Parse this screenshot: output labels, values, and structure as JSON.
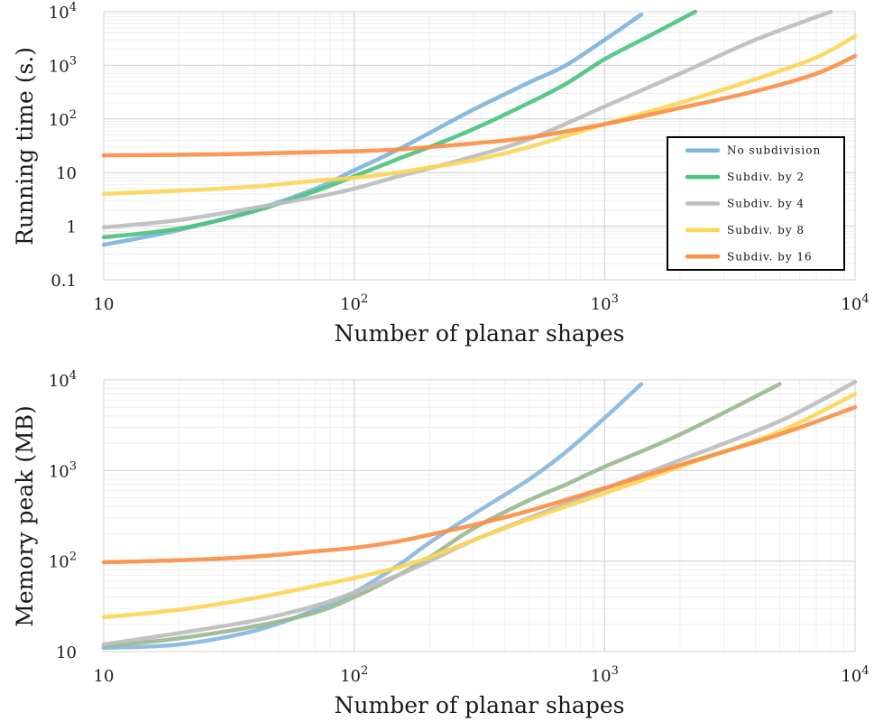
{
  "chart_data": [
    {
      "type": "line",
      "title": "",
      "xlabel": "Number of planar shapes",
      "ylabel": "Running time (s.)",
      "xscale": "log",
      "yscale": "log",
      "xlim": [
        10,
        10000
      ],
      "ylim": [
        0.1,
        10000
      ],
      "xticks": [
        {
          "value": 10,
          "base": "10",
          "exp": ""
        },
        {
          "value": 100,
          "base": "10",
          "exp": "2"
        },
        {
          "value": 1000,
          "base": "10",
          "exp": "3"
        },
        {
          "value": 10000,
          "base": "10",
          "exp": "4"
        }
      ],
      "yticks": [
        {
          "value": 0.1,
          "base": "0.1",
          "exp": ""
        },
        {
          "value": 1,
          "base": "1",
          "exp": ""
        },
        {
          "value": 10,
          "base": "10",
          "exp": ""
        },
        {
          "value": 100,
          "base": "10",
          "exp": "2"
        },
        {
          "value": 1000,
          "base": "10",
          "exp": "3"
        },
        {
          "value": 10000,
          "base": "10",
          "exp": "4"
        }
      ],
      "grid": true,
      "legend": "bottom-right",
      "series": [
        {
          "name": "No subdivision",
          "color": "#7db3de",
          "points": [
            [
              10,
              0.45
            ],
            [
              20,
              0.85
            ],
            [
              40,
              2.0
            ],
            [
              70,
              5.0
            ],
            [
              100,
              11
            ],
            [
              150,
              27
            ],
            [
              200,
              55
            ],
            [
              300,
              150
            ],
            [
              500,
              480
            ],
            [
              700,
              1000
            ],
            [
              1000,
              3000
            ],
            [
              1400,
              8800
            ]
          ]
        },
        {
          "name": "Subdiv. by 2",
          "color": "#4dc27e",
          "points": [
            [
              10,
              0.62
            ],
            [
              20,
              0.9
            ],
            [
              40,
              1.9
            ],
            [
              70,
              4.5
            ],
            [
              100,
              8.5
            ],
            [
              150,
              18
            ],
            [
              200,
              30
            ],
            [
              300,
              65
            ],
            [
              500,
              200
            ],
            [
              700,
              450
            ],
            [
              1000,
              1300
            ],
            [
              1500,
              3500
            ],
            [
              2300,
              10000
            ]
          ]
        },
        {
          "name": "Subdiv. by 4",
          "color": "#bdbdbd",
          "points": [
            [
              10,
              0.95
            ],
            [
              20,
              1.3
            ],
            [
              40,
              2.2
            ],
            [
              70,
              3.5
            ],
            [
              100,
              5
            ],
            [
              150,
              8.5
            ],
            [
              200,
              12
            ],
            [
              300,
              20
            ],
            [
              500,
              42
            ],
            [
              1000,
              170
            ],
            [
              2000,
              700
            ],
            [
              4000,
              3000
            ],
            [
              8000,
              10000
            ]
          ]
        },
        {
          "name": "Subdiv. by 8",
          "color": "#fcd658",
          "points": [
            [
              10,
              4
            ],
            [
              20,
              4.6
            ],
            [
              40,
              5.5
            ],
            [
              70,
              7
            ],
            [
              100,
              8
            ],
            [
              150,
              10
            ],
            [
              200,
              12.5
            ],
            [
              300,
              17
            ],
            [
              500,
              30
            ],
            [
              1000,
              80
            ],
            [
              2000,
              200
            ],
            [
              4000,
              550
            ],
            [
              7000,
              1400
            ],
            [
              10000,
              3500
            ]
          ]
        },
        {
          "name": "Subdiv. by 16",
          "color": "#fb8f46",
          "points": [
            [
              10,
              21
            ],
            [
              20,
              21.5
            ],
            [
              40,
              22.5
            ],
            [
              70,
              24
            ],
            [
              100,
              25
            ],
            [
              150,
              27
            ],
            [
              200,
              30
            ],
            [
              300,
              35
            ],
            [
              500,
              45
            ],
            [
              1000,
              80
            ],
            [
              2000,
              160
            ],
            [
              4000,
              330
            ],
            [
              7000,
              700
            ],
            [
              10000,
              1500
            ]
          ]
        }
      ]
    },
    {
      "type": "line",
      "title": "",
      "xlabel": "Number of planar shapes",
      "ylabel": "Memory peak (MB)",
      "xscale": "log",
      "yscale": "log",
      "xlim": [
        10,
        10000
      ],
      "ylim": [
        10,
        10000
      ],
      "xticks": [
        {
          "value": 10,
          "base": "10",
          "exp": ""
        },
        {
          "value": 100,
          "base": "10",
          "exp": "2"
        },
        {
          "value": 1000,
          "base": "10",
          "exp": "3"
        },
        {
          "value": 10000,
          "base": "10",
          "exp": "4"
        }
      ],
      "yticks": [
        {
          "value": 10,
          "base": "10",
          "exp": ""
        },
        {
          "value": 100,
          "base": "10",
          "exp": "2"
        },
        {
          "value": 1000,
          "base": "10",
          "exp": "3"
        },
        {
          "value": 10000,
          "base": "10",
          "exp": "4"
        }
      ],
      "grid": true,
      "series": [
        {
          "name": "No subdivision",
          "color": "#89b7df",
          "points": [
            [
              10,
              11
            ],
            [
              20,
              12
            ],
            [
              40,
              17
            ],
            [
              70,
              29
            ],
            [
              100,
              45
            ],
            [
              150,
              90
            ],
            [
              200,
              160
            ],
            [
              300,
              330
            ],
            [
              500,
              800
            ],
            [
              700,
              1600
            ],
            [
              1000,
              3800
            ],
            [
              1400,
              9000
            ]
          ]
        },
        {
          "name": "Subdiv. by 2",
          "color": "#9ab98e",
          "points": [
            [
              10,
              11.5
            ],
            [
              20,
              14
            ],
            [
              40,
              19
            ],
            [
              70,
              27
            ],
            [
              100,
              40
            ],
            [
              150,
              70
            ],
            [
              200,
              110
            ],
            [
              300,
              230
            ],
            [
              500,
              470
            ],
            [
              700,
              700
            ],
            [
              1000,
              1100
            ],
            [
              2000,
              2500
            ],
            [
              5000,
              9000
            ]
          ]
        },
        {
          "name": "Subdiv. by 4",
          "color": "#bdbdbd",
          "points": [
            [
              10,
              12
            ],
            [
              20,
              16
            ],
            [
              40,
              22
            ],
            [
              70,
              32
            ],
            [
              100,
              45
            ],
            [
              150,
              70
            ],
            [
              200,
              100
            ],
            [
              300,
              170
            ],
            [
              500,
              300
            ],
            [
              1000,
              630
            ],
            [
              2000,
              1300
            ],
            [
              5000,
              3500
            ],
            [
              10000,
              9500
            ]
          ]
        },
        {
          "name": "Subdiv. by 8",
          "color": "#fcd658",
          "points": [
            [
              10,
              24
            ],
            [
              20,
              29
            ],
            [
              40,
              39
            ],
            [
              70,
              53
            ],
            [
              100,
              65
            ],
            [
              150,
              85
            ],
            [
              200,
              110
            ],
            [
              300,
              170
            ],
            [
              500,
              290
            ],
            [
              1000,
              560
            ],
            [
              2000,
              1100
            ],
            [
              5000,
              2700
            ],
            [
              10000,
              7000
            ]
          ]
        },
        {
          "name": "Subdiv. by 16",
          "color": "#fb8f46",
          "points": [
            [
              10,
              97
            ],
            [
              20,
              102
            ],
            [
              40,
              112
            ],
            [
              70,
              128
            ],
            [
              100,
              140
            ],
            [
              150,
              165
            ],
            [
              200,
              195
            ],
            [
              300,
              250
            ],
            [
              500,
              360
            ],
            [
              1000,
              640
            ],
            [
              2000,
              1150
            ],
            [
              5000,
              2500
            ],
            [
              10000,
              5000
            ]
          ]
        }
      ]
    }
  ]
}
